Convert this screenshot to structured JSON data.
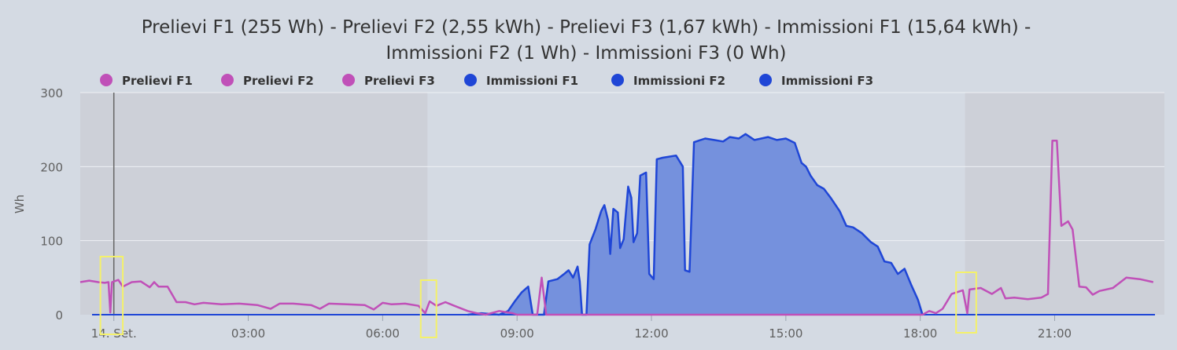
{
  "chart_data": {
    "type": "area",
    "title_line1": "Prelievi F1 (255 Wh) - Prelievi F2 (2,55 kWh) - Prelievi F3 (1,67 kWh) - Immissioni F1 (15,64 kWh) -",
    "title_line2": "Immissioni F2 (1 Wh) - Immissioni F3 (0 Wh)",
    "ylabel": "Wh",
    "xlabel": "",
    "ylim": [
      0,
      300
    ],
    "y_ticks": [
      0,
      100,
      200,
      300
    ],
    "x_range_hours": [
      -0.75,
      23.45
    ],
    "x_ticks": [
      {
        "hour": 0,
        "label": "14. Set."
      },
      {
        "hour": 3,
        "label": "03:00"
      },
      {
        "hour": 6,
        "label": "06:00"
      },
      {
        "hour": 9,
        "label": "09:00"
      },
      {
        "hour": 12,
        "label": "12:00"
      },
      {
        "hour": 15,
        "label": "15:00"
      },
      {
        "hour": 18,
        "label": "18:00"
      },
      {
        "hour": 21,
        "label": "21:00"
      }
    ],
    "grid": true,
    "legend_position": "top",
    "colors": {
      "prelievi": "#c050b8",
      "immissioni": "#1f46d6",
      "immissioni_fill": "#7591dd",
      "band_shade": "#cdd0d8",
      "plot_bg": "#d4dae3"
    },
    "shaded_bands_hours": [
      [
        -0.75,
        7.0
      ],
      [
        19.0,
        23.45
      ]
    ],
    "marker_line_hour": 0.0,
    "highlight_boxes_hours": [
      [
        -0.3,
        0.2
      ],
      [
        6.85,
        7.2
      ],
      [
        18.8,
        19.25
      ]
    ],
    "series": [
      {
        "name": "Prelievi F1",
        "color": "#c050b8"
      },
      {
        "name": "Prelievi F2",
        "color": "#c050b8"
      },
      {
        "name": "Prelievi F3",
        "color": "#c050b8"
      },
      {
        "name": "Immissioni F1",
        "color": "#1f46d6"
      },
      {
        "name": "Immissioni F2",
        "color": "#1f46d6"
      },
      {
        "name": "Immissioni F3",
        "color": "#1f46d6"
      }
    ],
    "prelievi_points": [
      [
        -0.75,
        44
      ],
      [
        -0.55,
        46
      ],
      [
        -0.35,
        44
      ],
      [
        -0.2,
        43
      ],
      [
        -0.12,
        44
      ],
      [
        -0.08,
        3
      ],
      [
        -0.04,
        44
      ],
      [
        0.1,
        47
      ],
      [
        0.2,
        38
      ],
      [
        0.4,
        44
      ],
      [
        0.6,
        45
      ],
      [
        0.8,
        37
      ],
      [
        0.9,
        44
      ],
      [
        1.0,
        38
      ],
      [
        1.2,
        38
      ],
      [
        1.4,
        17
      ],
      [
        1.6,
        17
      ],
      [
        1.8,
        14
      ],
      [
        2.0,
        16
      ],
      [
        2.4,
        14
      ],
      [
        2.8,
        15
      ],
      [
        3.2,
        13
      ],
      [
        3.5,
        8
      ],
      [
        3.7,
        15
      ],
      [
        4.0,
        15
      ],
      [
        4.4,
        13
      ],
      [
        4.6,
        8
      ],
      [
        4.8,
        15
      ],
      [
        5.2,
        14
      ],
      [
        5.6,
        13
      ],
      [
        5.8,
        7
      ],
      [
        6.0,
        16
      ],
      [
        6.2,
        14
      ],
      [
        6.5,
        15
      ],
      [
        6.8,
        12
      ],
      [
        6.95,
        2
      ],
      [
        7.05,
        18
      ],
      [
        7.2,
        12
      ],
      [
        7.4,
        17
      ],
      [
        7.6,
        12
      ],
      [
        7.9,
        5
      ],
      [
        8.1,
        2
      ],
      [
        8.3,
        0
      ],
      [
        8.6,
        5
      ],
      [
        8.9,
        2
      ],
      [
        9.0,
        0
      ],
      [
        9.45,
        0
      ],
      [
        9.55,
        50
      ],
      [
        9.65,
        0
      ],
      [
        18.05,
        0
      ],
      [
        18.2,
        5
      ],
      [
        18.35,
        2
      ],
      [
        18.5,
        8
      ],
      [
        18.7,
        28
      ],
      [
        18.95,
        33
      ],
      [
        19.05,
        2
      ],
      [
        19.1,
        34
      ],
      [
        19.35,
        36
      ],
      [
        19.6,
        28
      ],
      [
        19.8,
        36
      ],
      [
        19.9,
        22
      ],
      [
        20.1,
        23
      ],
      [
        20.4,
        21
      ],
      [
        20.7,
        23
      ],
      [
        20.85,
        28
      ],
      [
        20.95,
        235
      ],
      [
        21.05,
        235
      ],
      [
        21.15,
        120
      ],
      [
        21.3,
        126
      ],
      [
        21.4,
        115
      ],
      [
        21.55,
        38
      ],
      [
        21.7,
        37
      ],
      [
        21.85,
        27
      ],
      [
        22.0,
        32
      ],
      [
        22.3,
        36
      ],
      [
        22.6,
        50
      ],
      [
        22.9,
        48
      ],
      [
        23.2,
        44
      ]
    ],
    "immissioni_points": [
      [
        7.9,
        0
      ],
      [
        8.2,
        2
      ],
      [
        8.6,
        0
      ],
      [
        8.8,
        5
      ],
      [
        8.95,
        18
      ],
      [
        9.1,
        30
      ],
      [
        9.25,
        38
      ],
      [
        9.35,
        0
      ],
      [
        9.6,
        0
      ],
      [
        9.7,
        45
      ],
      [
        9.9,
        48
      ],
      [
        10.05,
        55
      ],
      [
        10.15,
        60
      ],
      [
        10.25,
        50
      ],
      [
        10.35,
        65
      ],
      [
        10.4,
        45
      ],
      [
        10.45,
        0
      ],
      [
        10.55,
        0
      ],
      [
        10.62,
        95
      ],
      [
        10.75,
        115
      ],
      [
        10.88,
        140
      ],
      [
        10.95,
        148
      ],
      [
        11.03,
        128
      ],
      [
        11.08,
        82
      ],
      [
        11.15,
        143
      ],
      [
        11.25,
        138
      ],
      [
        11.3,
        90
      ],
      [
        11.38,
        102
      ],
      [
        11.48,
        173
      ],
      [
        11.55,
        158
      ],
      [
        11.6,
        98
      ],
      [
        11.68,
        110
      ],
      [
        11.75,
        188
      ],
      [
        11.88,
        192
      ],
      [
        11.95,
        55
      ],
      [
        12.05,
        48
      ],
      [
        12.12,
        210
      ],
      [
        12.25,
        212
      ],
      [
        12.55,
        215
      ],
      [
        12.7,
        200
      ],
      [
        12.75,
        60
      ],
      [
        12.85,
        58
      ],
      [
        12.95,
        233
      ],
      [
        13.2,
        238
      ],
      [
        13.4,
        236
      ],
      [
        13.6,
        234
      ],
      [
        13.75,
        240
      ],
      [
        13.95,
        238
      ],
      [
        14.1,
        244
      ],
      [
        14.3,
        236
      ],
      [
        14.6,
        240
      ],
      [
        14.8,
        236
      ],
      [
        15.0,
        238
      ],
      [
        15.2,
        232
      ],
      [
        15.35,
        205
      ],
      [
        15.45,
        200
      ],
      [
        15.55,
        188
      ],
      [
        15.7,
        175
      ],
      [
        15.85,
        170
      ],
      [
        16.0,
        158
      ],
      [
        16.2,
        140
      ],
      [
        16.35,
        120
      ],
      [
        16.5,
        118
      ],
      [
        16.7,
        110
      ],
      [
        16.9,
        98
      ],
      [
        17.05,
        92
      ],
      [
        17.2,
        72
      ],
      [
        17.35,
        70
      ],
      [
        17.5,
        55
      ],
      [
        17.65,
        62
      ],
      [
        17.8,
        40
      ],
      [
        17.95,
        20
      ],
      [
        18.05,
        0
      ]
    ],
    "baseline_line_hours": [
      -0.75,
      23.45
    ]
  },
  "legend": [
    {
      "label": "Prelievi F1",
      "color": "#c050b8"
    },
    {
      "label": "Prelievi F2",
      "color": "#c050b8"
    },
    {
      "label": "Prelievi F3",
      "color": "#c050b8"
    },
    {
      "label": "Immissioni F1",
      "color": "#1f46d6"
    },
    {
      "label": "Immissioni F2",
      "color": "#1f46d6"
    },
    {
      "label": "Immissioni F3",
      "color": "#1f46d6"
    }
  ]
}
